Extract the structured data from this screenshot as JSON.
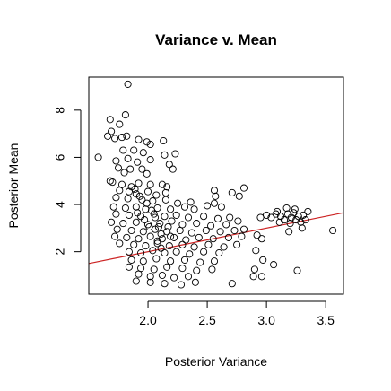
{
  "chart_data": {
    "type": "scatter",
    "title": "Variance v. Mean",
    "xlabel": "Posterior Variance",
    "ylabel": "Posterior Mean",
    "xlim": [
      1.5,
      3.65
    ],
    "ylim": [
      0.2,
      9.4
    ],
    "xticks": [
      2.0,
      2.5,
      3.0,
      3.5
    ],
    "xtick_labels": [
      "2.0",
      "2.5",
      "3.0",
      "3.5"
    ],
    "yticks": [
      2,
      4,
      6,
      8
    ],
    "ytick_labels": [
      "2",
      "4",
      "6",
      "8"
    ],
    "grid": false,
    "regression_line": {
      "color": "#cc2222",
      "x": [
        1.5,
        3.65
      ],
      "y": [
        1.5,
        3.65
      ]
    },
    "points": [
      [
        1.83,
        9.1
      ],
      [
        1.81,
        7.8
      ],
      [
        1.68,
        7.6
      ],
      [
        1.76,
        7.4
      ],
      [
        1.69,
        7.1
      ],
      [
        1.66,
        6.9
      ],
      [
        1.72,
        6.8
      ],
      [
        1.78,
        6.85
      ],
      [
        1.82,
        6.9
      ],
      [
        1.92,
        6.75
      ],
      [
        1.99,
        6.65
      ],
      [
        2.02,
        6.55
      ],
      [
        2.13,
        6.7
      ],
      [
        1.58,
        6.0
      ],
      [
        1.79,
        6.3
      ],
      [
        1.88,
        6.3
      ],
      [
        1.96,
        6.2
      ],
      [
        2.14,
        6.1
      ],
      [
        2.23,
        6.15
      ],
      [
        1.73,
        5.85
      ],
      [
        1.83,
        5.95
      ],
      [
        1.91,
        5.8
      ],
      [
        2.02,
        5.9
      ],
      [
        2.18,
        5.7
      ],
      [
        2.21,
        5.5
      ],
      [
        1.75,
        5.55
      ],
      [
        1.85,
        5.5
      ],
      [
        1.95,
        5.5
      ],
      [
        1.8,
        5.35
      ],
      [
        1.99,
        5.3
      ],
      [
        1.68,
        5.0
      ],
      [
        1.7,
        4.95
      ],
      [
        1.78,
        4.85
      ],
      [
        1.86,
        4.75
      ],
      [
        1.92,
        4.9
      ],
      [
        2.02,
        4.85
      ],
      [
        2.12,
        4.85
      ],
      [
        2.16,
        4.75
      ],
      [
        1.76,
        4.6
      ],
      [
        1.84,
        4.55
      ],
      [
        1.9,
        4.45
      ],
      [
        2.0,
        4.55
      ],
      [
        2.07,
        4.4
      ],
      [
        2.15,
        4.5
      ],
      [
        1.73,
        4.3
      ],
      [
        1.83,
        4.25
      ],
      [
        1.95,
        4.2
      ],
      [
        2.04,
        4.15
      ],
      [
        2.15,
        4.2
      ],
      [
        2.25,
        4.05
      ],
      [
        2.36,
        4.1
      ],
      [
        2.56,
        4.6
      ],
      [
        2.57,
        4.35
      ],
      [
        2.71,
        4.5
      ],
      [
        2.77,
        4.35
      ],
      [
        2.81,
        4.7
      ],
      [
        1.71,
        3.9
      ],
      [
        1.81,
        3.85
      ],
      [
        1.9,
        3.9
      ],
      [
        1.98,
        3.8
      ],
      [
        2.08,
        3.85
      ],
      [
        2.19,
        3.8
      ],
      [
        2.31,
        3.9
      ],
      [
        2.39,
        3.8
      ],
      [
        2.5,
        3.95
      ],
      [
        2.56,
        4.05
      ],
      [
        2.62,
        3.9
      ],
      [
        1.73,
        3.6
      ],
      [
        1.84,
        3.55
      ],
      [
        1.94,
        3.5
      ],
      [
        2.05,
        3.6
      ],
      [
        2.14,
        3.5
      ],
      [
        2.24,
        3.55
      ],
      [
        2.34,
        3.45
      ],
      [
        2.47,
        3.5
      ],
      [
        2.59,
        3.4
      ],
      [
        2.69,
        3.45
      ],
      [
        1.69,
        3.25
      ],
      [
        1.79,
        3.2
      ],
      [
        1.9,
        3.25
      ],
      [
        2.0,
        3.15
      ],
      [
        2.1,
        3.2
      ],
      [
        2.2,
        3.3
      ],
      [
        2.29,
        3.15
      ],
      [
        2.41,
        3.2
      ],
      [
        2.53,
        3.1
      ],
      [
        2.66,
        3.15
      ],
      [
        2.76,
        3.3
      ],
      [
        1.74,
        2.95
      ],
      [
        1.86,
        2.9
      ],
      [
        1.96,
        2.85
      ],
      [
        2.06,
        2.95
      ],
      [
        2.16,
        2.85
      ],
      [
        2.27,
        2.9
      ],
      [
        2.37,
        2.8
      ],
      [
        2.49,
        2.9
      ],
      [
        2.61,
        2.85
      ],
      [
        2.73,
        2.9
      ],
      [
        2.81,
        2.95
      ],
      [
        1.72,
        2.65
      ],
      [
        1.82,
        2.6
      ],
      [
        1.92,
        2.55
      ],
      [
        2.02,
        2.65
      ],
      [
        2.12,
        2.55
      ],
      [
        2.22,
        2.6
      ],
      [
        2.32,
        2.5
      ],
      [
        2.43,
        2.6
      ],
      [
        2.55,
        2.55
      ],
      [
        2.68,
        2.6
      ],
      [
        2.79,
        2.65
      ],
      [
        1.76,
        2.35
      ],
      [
        1.88,
        2.3
      ],
      [
        1.98,
        2.25
      ],
      [
        2.08,
        2.35
      ],
      [
        2.18,
        2.25
      ],
      [
        2.29,
        2.3
      ],
      [
        2.39,
        2.2
      ],
      [
        2.51,
        2.3
      ],
      [
        2.64,
        2.2
      ],
      [
        2.75,
        2.3
      ],
      [
        1.84,
        2.0
      ],
      [
        1.94,
        1.95
      ],
      [
        2.04,
        2.05
      ],
      [
        2.14,
        1.95
      ],
      [
        2.24,
        2.0
      ],
      [
        2.35,
        1.9
      ],
      [
        2.47,
        2.0
      ],
      [
        2.6,
        1.95
      ],
      [
        1.86,
        1.65
      ],
      [
        1.96,
        1.6
      ],
      [
        2.07,
        1.7
      ],
      [
        2.19,
        1.6
      ],
      [
        2.31,
        1.65
      ],
      [
        2.44,
        1.55
      ],
      [
        2.56,
        1.6
      ],
      [
        1.84,
        1.35
      ],
      [
        1.94,
        1.3
      ],
      [
        2.05,
        1.25
      ],
      [
        2.16,
        1.35
      ],
      [
        2.29,
        1.3
      ],
      [
        2.41,
        1.2
      ],
      [
        2.54,
        1.25
      ],
      [
        1.92,
        1.05
      ],
      [
        2.02,
        0.95
      ],
      [
        2.12,
        1.0
      ],
      [
        2.22,
        0.9
      ],
      [
        2.34,
        0.95
      ],
      [
        1.9,
        0.75
      ],
      [
        2.02,
        0.7
      ],
      [
        2.14,
        0.65
      ],
      [
        2.28,
        0.6
      ],
      [
        2.4,
        0.7
      ],
      [
        2.71,
        0.65
      ],
      [
        1.89,
        4.65
      ],
      [
        1.93,
        4.35
      ],
      [
        1.99,
        4.05
      ],
      [
        2.03,
        3.75
      ],
      [
        2.06,
        3.45
      ],
      [
        2.09,
        3.05
      ],
      [
        2.11,
        2.75
      ],
      [
        1.91,
        3.65
      ],
      [
        1.97,
        3.35
      ],
      [
        2.01,
        3.05
      ],
      [
        2.08,
        2.45
      ],
      [
        2.11,
        2.15
      ],
      [
        2.17,
        3.05
      ],
      [
        2.19,
        2.65
      ],
      [
        2.92,
        2.7
      ],
      [
        2.96,
        2.55
      ],
      [
        2.91,
        2.05
      ],
      [
        2.97,
        1.65
      ],
      [
        2.9,
        1.25
      ],
      [
        3.06,
        1.45
      ],
      [
        2.89,
        0.95
      ],
      [
        2.96,
        0.95
      ],
      [
        3.26,
        1.2
      ],
      [
        3.56,
        2.9
      ],
      [
        2.95,
        3.45
      ],
      [
        3.0,
        3.55
      ],
      [
        3.04,
        3.45
      ],
      [
        3.08,
        3.6
      ],
      [
        3.12,
        3.5
      ],
      [
        3.15,
        3.35
      ],
      [
        3.18,
        3.6
      ],
      [
        3.2,
        3.2
      ],
      [
        3.21,
        3.45
      ],
      [
        3.23,
        3.65
      ],
      [
        3.25,
        3.35
      ],
      [
        3.27,
        3.5
      ],
      [
        3.29,
        3.25
      ],
      [
        3.31,
        3.55
      ],
      [
        3.33,
        3.35
      ],
      [
        3.35,
        3.7
      ],
      [
        3.11,
        3.25
      ],
      [
        3.17,
        3.85
      ],
      [
        3.24,
        3.8
      ],
      [
        3.19,
        2.85
      ],
      [
        3.3,
        3.0
      ],
      [
        3.09,
        3.7
      ]
    ]
  }
}
